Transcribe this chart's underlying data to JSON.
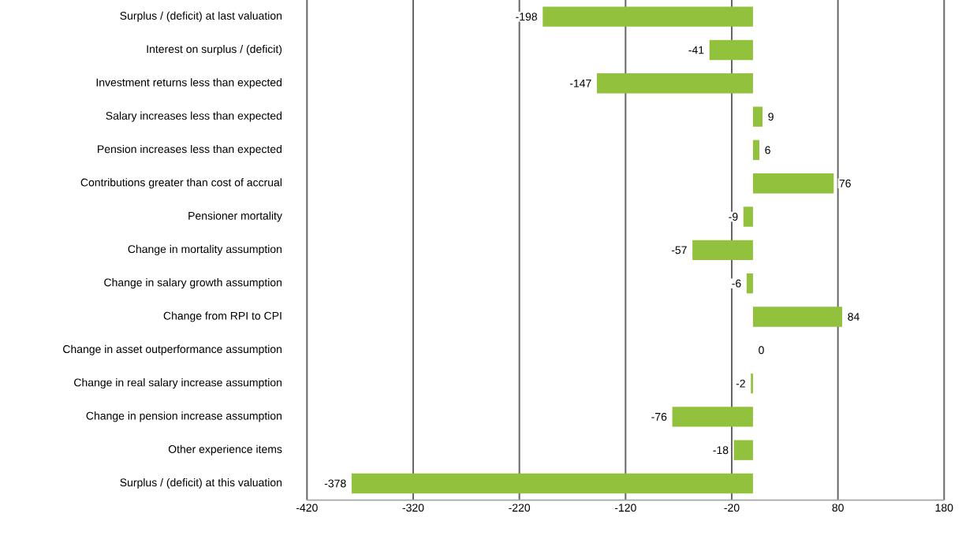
{
  "chart_data": {
    "type": "bar",
    "orientation": "horizontal",
    "categories": [
      "Surplus / (deficit) at last valuation",
      "Interest on surplus / (deficit)",
      "Investment returns less than expected",
      "Salary increases less than expected",
      "Pension increases less than expected",
      "Contributions greater than cost of accrual",
      "Pensioner mortality",
      "Change in mortality assumption",
      "Change in salary growth assumption",
      "Change from RPI to CPI",
      "Change in asset outperformance assumption",
      "Change in real salary increase assumption",
      "Change in pension increase assumption",
      "Other experience items",
      "Surplus / (deficit) at this valuation"
    ],
    "values": [
      -198,
      -41,
      -147,
      9,
      6,
      76,
      -9,
      -57,
      -6,
      84,
      0,
      -2,
      -76,
      -18,
      -378
    ],
    "color": "#92c13d",
    "xlim": [
      -420,
      180
    ],
    "xticks": [
      -420,
      -320,
      -220,
      -120,
      -20,
      80,
      180
    ],
    "grid": "x",
    "data_labels": true
  }
}
